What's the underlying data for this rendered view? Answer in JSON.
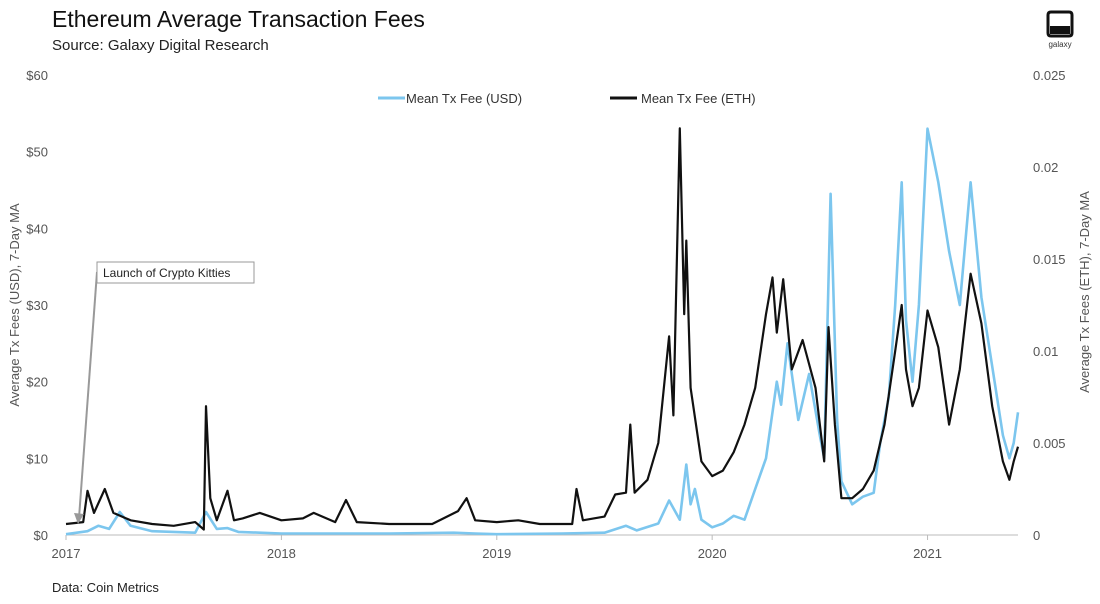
{
  "header": {
    "title": "Ethereum Average Transaction Fees",
    "subtitle": "Source: Galaxy Digital Research",
    "logo_text": "galaxy"
  },
  "footer": {
    "note": "Data: Coin Metrics"
  },
  "colors": {
    "usd": "#7cc6ee",
    "eth": "#111111",
    "axis": "#bbbbbb",
    "annotation": "#999999"
  },
  "chart_data": {
    "type": "line",
    "title": "Ethereum Average Transaction Fees",
    "xlabel": "",
    "ylabel_left": "Average Tx Fees (USD), 7-Day MA",
    "ylabel_right": "Average Tx Fees (ETH), 7-Day MA",
    "x_ticks": [
      "2017",
      "2018",
      "2019",
      "2020",
      "2021"
    ],
    "xlim": [
      2017.0,
      2021.42
    ],
    "ylim_left": [
      0,
      60
    ],
    "ylim_right": [
      0,
      0.025
    ],
    "y_ticks_left": [
      "$0",
      "$10",
      "$20",
      "$30",
      "$40",
      "$50",
      "$60"
    ],
    "y_ticks_right": [
      "0",
      "0.005",
      "0.01",
      "0.015",
      "0.02",
      "0.025"
    ],
    "legend": {
      "placement": "top-center",
      "entries": [
        "Mean Tx Fee (USD)",
        "Mean Tx Fee (ETH)"
      ]
    },
    "annotations": [
      {
        "text": "Launch of Crypto Kitties",
        "x": 2017.06,
        "y": 0
      }
    ],
    "series": [
      {
        "name": "Mean Tx Fee (USD)",
        "axis": "left",
        "points": [
          [
            2017.0,
            0.1
          ],
          [
            2017.1,
            0.5
          ],
          [
            2017.15,
            1.2
          ],
          [
            2017.2,
            0.8
          ],
          [
            2017.25,
            3.0
          ],
          [
            2017.3,
            1.2
          ],
          [
            2017.4,
            0.5
          ],
          [
            2017.5,
            0.4
          ],
          [
            2017.6,
            0.3
          ],
          [
            2017.65,
            3.0
          ],
          [
            2017.7,
            0.8
          ],
          [
            2017.75,
            0.9
          ],
          [
            2017.8,
            0.4
          ],
          [
            2017.9,
            0.3
          ],
          [
            2018.0,
            0.2
          ],
          [
            2018.2,
            0.2
          ],
          [
            2018.5,
            0.2
          ],
          [
            2018.8,
            0.3
          ],
          [
            2018.9,
            0.2
          ],
          [
            2019.0,
            0.1
          ],
          [
            2019.3,
            0.2
          ],
          [
            2019.5,
            0.3
          ],
          [
            2019.6,
            1.2
          ],
          [
            2019.65,
            0.6
          ],
          [
            2019.75,
            1.5
          ],
          [
            2019.8,
            4.5
          ],
          [
            2019.85,
            2.0
          ],
          [
            2019.88,
            9.2
          ],
          [
            2019.9,
            4.0
          ],
          [
            2019.92,
            6.0
          ],
          [
            2019.95,
            2.0
          ],
          [
            2020.0,
            1.0
          ],
          [
            2020.05,
            1.5
          ],
          [
            2020.1,
            2.5
          ],
          [
            2020.15,
            2.0
          ],
          [
            2020.2,
            6.0
          ],
          [
            2020.25,
            10.0
          ],
          [
            2020.3,
            20.0
          ],
          [
            2020.32,
            17.0
          ],
          [
            2020.35,
            25.0
          ],
          [
            2020.4,
            15.0
          ],
          [
            2020.45,
            21.0
          ],
          [
            2020.5,
            13.0
          ],
          [
            2020.52,
            10.0
          ],
          [
            2020.55,
            44.5
          ],
          [
            2020.58,
            15.0
          ],
          [
            2020.6,
            7.0
          ],
          [
            2020.65,
            4.0
          ],
          [
            2020.7,
            5.0
          ],
          [
            2020.75,
            5.5
          ],
          [
            2020.78,
            12.0
          ],
          [
            2020.82,
            18.0
          ],
          [
            2020.85,
            30.0
          ],
          [
            2020.88,
            46.0
          ],
          [
            2020.9,
            28.0
          ],
          [
            2020.93,
            20.0
          ],
          [
            2020.96,
            30.0
          ],
          [
            2021.0,
            53.0
          ],
          [
            2021.05,
            46.0
          ],
          [
            2021.1,
            37.0
          ],
          [
            2021.15,
            30.0
          ],
          [
            2021.2,
            46.0
          ],
          [
            2021.25,
            31.0
          ],
          [
            2021.3,
            22.0
          ],
          [
            2021.35,
            13.0
          ],
          [
            2021.38,
            10.0
          ],
          [
            2021.4,
            12.0
          ],
          [
            2021.42,
            16.0
          ]
        ]
      },
      {
        "name": "Mean Tx Fee (ETH)",
        "axis": "right",
        "points": [
          [
            2017.0,
            0.0006
          ],
          [
            2017.08,
            0.0007
          ],
          [
            2017.1,
            0.0024
          ],
          [
            2017.13,
            0.0012
          ],
          [
            2017.18,
            0.0025
          ],
          [
            2017.22,
            0.0012
          ],
          [
            2017.3,
            0.0008
          ],
          [
            2017.4,
            0.0006
          ],
          [
            2017.5,
            0.0005
          ],
          [
            2017.6,
            0.0007
          ],
          [
            2017.64,
            0.0003
          ],
          [
            2017.65,
            0.007
          ],
          [
            2017.67,
            0.002
          ],
          [
            2017.7,
            0.0008
          ],
          [
            2017.75,
            0.0024
          ],
          [
            2017.78,
            0.0008
          ],
          [
            2017.82,
            0.0009
          ],
          [
            2017.9,
            0.0012
          ],
          [
            2018.0,
            0.0008
          ],
          [
            2018.1,
            0.0009
          ],
          [
            2018.15,
            0.0012
          ],
          [
            2018.25,
            0.0007
          ],
          [
            2018.3,
            0.0019
          ],
          [
            2018.35,
            0.0007
          ],
          [
            2018.5,
            0.0006
          ],
          [
            2018.7,
            0.0006
          ],
          [
            2018.82,
            0.0013
          ],
          [
            2018.86,
            0.002
          ],
          [
            2018.9,
            0.0008
          ],
          [
            2019.0,
            0.0007
          ],
          [
            2019.1,
            0.0008
          ],
          [
            2019.2,
            0.0006
          ],
          [
            2019.35,
            0.0006
          ],
          [
            2019.37,
            0.0025
          ],
          [
            2019.4,
            0.0008
          ],
          [
            2019.5,
            0.001
          ],
          [
            2019.55,
            0.0022
          ],
          [
            2019.6,
            0.0023
          ],
          [
            2019.62,
            0.006
          ],
          [
            2019.64,
            0.0023
          ],
          [
            2019.7,
            0.003
          ],
          [
            2019.75,
            0.005
          ],
          [
            2019.78,
            0.0085
          ],
          [
            2019.8,
            0.0108
          ],
          [
            2019.82,
            0.0065
          ],
          [
            2019.85,
            0.0221
          ],
          [
            2019.87,
            0.012
          ],
          [
            2019.88,
            0.016
          ],
          [
            2019.9,
            0.008
          ],
          [
            2019.95,
            0.004
          ],
          [
            2020.0,
            0.0032
          ],
          [
            2020.05,
            0.0035
          ],
          [
            2020.1,
            0.0045
          ],
          [
            2020.15,
            0.006
          ],
          [
            2020.2,
            0.008
          ],
          [
            2020.25,
            0.012
          ],
          [
            2020.28,
            0.014
          ],
          [
            2020.3,
            0.011
          ],
          [
            2020.33,
            0.0139
          ],
          [
            2020.37,
            0.009
          ],
          [
            2020.42,
            0.0106
          ],
          [
            2020.48,
            0.008
          ],
          [
            2020.52,
            0.004
          ],
          [
            2020.54,
            0.0113
          ],
          [
            2020.57,
            0.006
          ],
          [
            2020.6,
            0.002
          ],
          [
            2020.65,
            0.002
          ],
          [
            2020.7,
            0.0025
          ],
          [
            2020.75,
            0.0035
          ],
          [
            2020.8,
            0.006
          ],
          [
            2020.85,
            0.01
          ],
          [
            2020.88,
            0.0125
          ],
          [
            2020.9,
            0.009
          ],
          [
            2020.93,
            0.007
          ],
          [
            2020.96,
            0.008
          ],
          [
            2021.0,
            0.0122
          ],
          [
            2021.05,
            0.0102
          ],
          [
            2021.1,
            0.006
          ],
          [
            2021.15,
            0.009
          ],
          [
            2021.2,
            0.0142
          ],
          [
            2021.25,
            0.0115
          ],
          [
            2021.3,
            0.007
          ],
          [
            2021.35,
            0.004
          ],
          [
            2021.38,
            0.003
          ],
          [
            2021.4,
            0.004
          ],
          [
            2021.42,
            0.0048
          ]
        ]
      }
    ]
  }
}
